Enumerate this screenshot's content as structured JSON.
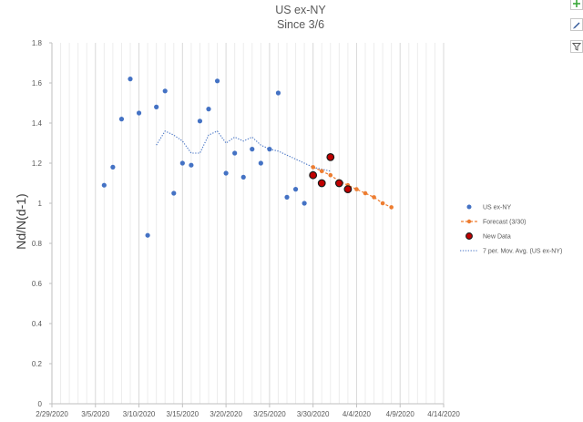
{
  "chart_data": {
    "type": "scatter",
    "title": "US ex-NY",
    "subtitle": "Since 3/6",
    "xlabel": "",
    "ylabel": "Nd/N(d-1)",
    "xlim": [
      "2020-02-29",
      "2020-04-14"
    ],
    "ylim": [
      0,
      1.8
    ],
    "x_ticks": [
      "2/29/2020",
      "3/5/2020",
      "3/10/2020",
      "3/15/2020",
      "3/20/2020",
      "3/25/2020",
      "3/30/2020",
      "4/4/2020",
      "4/9/2020",
      "4/14/2020"
    ],
    "y_ticks": [
      "0",
      "0.2",
      "0.4",
      "0.6",
      "0.8",
      "1",
      "1.2",
      "1.4",
      "1.6",
      "1.8"
    ],
    "grid": "vertical",
    "legend_position": "right",
    "series": [
      {
        "name": "US ex-NY",
        "kind": "markers",
        "color": "#4472c4",
        "points": [
          {
            "x": "2020-03-06",
            "y": 1.09
          },
          {
            "x": "2020-03-07",
            "y": 1.18
          },
          {
            "x": "2020-03-08",
            "y": 1.42
          },
          {
            "x": "2020-03-09",
            "y": 1.62
          },
          {
            "x": "2020-03-10",
            "y": 1.45
          },
          {
            "x": "2020-03-11",
            "y": 0.84
          },
          {
            "x": "2020-03-12",
            "y": 1.48
          },
          {
            "x": "2020-03-13",
            "y": 1.56
          },
          {
            "x": "2020-03-14",
            "y": 1.05
          },
          {
            "x": "2020-03-15",
            "y": 1.2
          },
          {
            "x": "2020-03-16",
            "y": 1.19
          },
          {
            "x": "2020-03-17",
            "y": 1.41
          },
          {
            "x": "2020-03-18",
            "y": 1.47
          },
          {
            "x": "2020-03-19",
            "y": 1.61
          },
          {
            "x": "2020-03-20",
            "y": 1.15
          },
          {
            "x": "2020-03-21",
            "y": 1.25
          },
          {
            "x": "2020-03-22",
            "y": 1.13
          },
          {
            "x": "2020-03-23",
            "y": 1.27
          },
          {
            "x": "2020-03-24",
            "y": 1.2
          },
          {
            "x": "2020-03-25",
            "y": 1.27
          },
          {
            "x": "2020-03-26",
            "y": 1.55
          },
          {
            "x": "2020-03-27",
            "y": 1.03
          },
          {
            "x": "2020-03-28",
            "y": 1.07
          },
          {
            "x": "2020-03-29",
            "y": 1.0
          }
        ]
      },
      {
        "name": "Forecast (3/30)",
        "kind": "dashed-line-markers",
        "color": "#ed7d31",
        "points": [
          {
            "x": "2020-03-30",
            "y": 1.18
          },
          {
            "x": "2020-03-31",
            "y": 1.16
          },
          {
            "x": "2020-04-01",
            "y": 1.14
          },
          {
            "x": "2020-04-02",
            "y": 1.11
          },
          {
            "x": "2020-04-03",
            "y": 1.09
          },
          {
            "x": "2020-04-04",
            "y": 1.07
          },
          {
            "x": "2020-04-05",
            "y": 1.05
          },
          {
            "x": "2020-04-06",
            "y": 1.03
          },
          {
            "x": "2020-04-07",
            "y": 1.0
          },
          {
            "x": "2020-04-08",
            "y": 0.98
          }
        ]
      },
      {
        "name": "New Data",
        "kind": "markers",
        "color": "#c00000",
        "points": [
          {
            "x": "2020-03-30",
            "y": 1.14
          },
          {
            "x": "2020-03-31",
            "y": 1.1
          },
          {
            "x": "2020-04-01",
            "y": 1.23
          },
          {
            "x": "2020-04-02",
            "y": 1.1
          },
          {
            "x": "2020-04-03",
            "y": 1.07
          }
        ]
      },
      {
        "name": "7 per. Mov. Avg. (US ex-NY)",
        "kind": "dotted-line",
        "color": "#4472c4",
        "points": [
          {
            "x": "2020-03-12",
            "y": 1.29
          },
          {
            "x": "2020-03-13",
            "y": 1.36
          },
          {
            "x": "2020-03-14",
            "y": 1.34
          },
          {
            "x": "2020-03-15",
            "y": 1.31
          },
          {
            "x": "2020-03-16",
            "y": 1.25
          },
          {
            "x": "2020-03-17",
            "y": 1.25
          },
          {
            "x": "2020-03-18",
            "y": 1.34
          },
          {
            "x": "2020-03-19",
            "y": 1.36
          },
          {
            "x": "2020-03-20",
            "y": 1.3
          },
          {
            "x": "2020-03-21",
            "y": 1.33
          },
          {
            "x": "2020-03-22",
            "y": 1.31
          },
          {
            "x": "2020-03-23",
            "y": 1.33
          },
          {
            "x": "2020-03-24",
            "y": 1.29
          },
          {
            "x": "2020-03-25",
            "y": 1.27
          },
          {
            "x": "2020-03-26",
            "y": 1.26
          },
          {
            "x": "2020-03-27",
            "y": 1.24
          },
          {
            "x": "2020-03-28",
            "y": 1.22
          },
          {
            "x": "2020-03-29",
            "y": 1.2
          },
          {
            "x": "2020-03-30",
            "y": 1.18
          },
          {
            "x": "2020-03-31",
            "y": 1.17
          },
          {
            "x": "2020-04-01",
            "y": 1.16
          }
        ]
      }
    ]
  },
  "ui": {
    "buttons": [
      {
        "icon": "plus-icon",
        "color": "#3aa83a"
      },
      {
        "icon": "brush-icon",
        "color": "#2f5597"
      },
      {
        "icon": "funnel-icon",
        "color": "#595959"
      }
    ]
  }
}
